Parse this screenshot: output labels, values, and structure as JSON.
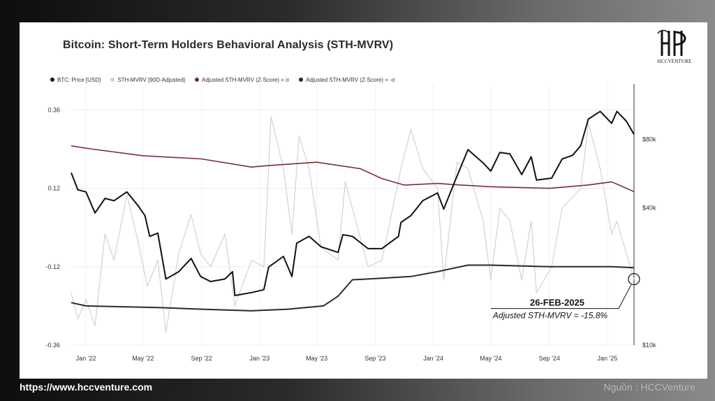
{
  "footer": {
    "url": "https://www.hccventure.com",
    "source": "Nguồn : HCCVenture"
  },
  "logo": {
    "text": "HCCVENTURE",
    "name": "hccventure-logo"
  },
  "colors": {
    "price": "#111111",
    "sth_mvrv": "#d2d2d2",
    "plus_sigma": "#7a2e33",
    "minus_sigma": "#2a2a2a"
  },
  "chart_data": {
    "type": "line",
    "title": "Bitcoin: Short-Term Holders Behavioral Analysis (STH-MVRV)",
    "x_ticks": [
      "Jan '22",
      "May '22",
      "Sep '22",
      "Jan '23",
      "May '23",
      "Sep '23",
      "Jan '24",
      "May '24",
      "Sep '24",
      "Jan '25"
    ],
    "x_tick_dates": [
      "2022-01-01",
      "2022-05-01",
      "2022-09-01",
      "2023-01-01",
      "2023-05-01",
      "2023-09-01",
      "2024-01-01",
      "2024-05-01",
      "2024-09-01",
      "2025-01-01"
    ],
    "x_range": [
      "2021-12-01",
      "2025-02-26"
    ],
    "y_left": {
      "ticks": [
        -0.36,
        -0.12,
        0.12,
        0.36
      ],
      "tick_labels": [
        "-0.36",
        "-0.12",
        "0.12",
        "0.36"
      ],
      "range": [
        -0.36,
        0.44
      ]
    },
    "y_right": {
      "scale": "log",
      "ticks": [
        10000,
        40000,
        80000
      ],
      "tick_labels": [
        "$10k",
        "$40k",
        "$80k"
      ],
      "range": [
        10000,
        140000
      ]
    },
    "grid": true,
    "legend_placement": "top-left",
    "series": [
      {
        "name": "BTC: Price [USD]",
        "axis": "right",
        "points": [
          [
            "2021-12-01",
            57000
          ],
          [
            "2021-12-15",
            48000
          ],
          [
            "2022-01-01",
            47000
          ],
          [
            "2022-01-20",
            38000
          ],
          [
            "2022-02-10",
            44000
          ],
          [
            "2022-03-01",
            43000
          ],
          [
            "2022-03-28",
            47000
          ],
          [
            "2022-04-20",
            41000
          ],
          [
            "2022-05-05",
            37000
          ],
          [
            "2022-05-15",
            30000
          ],
          [
            "2022-06-01",
            31000
          ],
          [
            "2022-06-18",
            19500
          ],
          [
            "2022-07-15",
            21000
          ],
          [
            "2022-08-10",
            24000
          ],
          [
            "2022-08-30",
            20000
          ],
          [
            "2022-09-20",
            19000
          ],
          [
            "2022-10-20",
            19500
          ],
          [
            "2022-11-05",
            21000
          ],
          [
            "2022-11-10",
            16500
          ],
          [
            "2022-12-15",
            17000
          ],
          [
            "2023-01-10",
            17500
          ],
          [
            "2023-01-20",
            22000
          ],
          [
            "2023-02-20",
            24500
          ],
          [
            "2023-03-10",
            20000
          ],
          [
            "2023-03-20",
            28000
          ],
          [
            "2023-04-15",
            30000
          ],
          [
            "2023-05-10",
            27000
          ],
          [
            "2023-06-15",
            25500
          ],
          [
            "2023-06-25",
            30500
          ],
          [
            "2023-07-15",
            30000
          ],
          [
            "2023-08-17",
            26500
          ],
          [
            "2023-09-15",
            26500
          ],
          [
            "2023-10-20",
            30000
          ],
          [
            "2023-10-25",
            34500
          ],
          [
            "2023-11-15",
            37000
          ],
          [
            "2023-12-10",
            43000
          ],
          [
            "2024-01-10",
            46500
          ],
          [
            "2024-01-23",
            39500
          ],
          [
            "2024-02-15",
            52000
          ],
          [
            "2024-03-14",
            72000
          ],
          [
            "2024-04-15",
            63000
          ],
          [
            "2024-05-01",
            58000
          ],
          [
            "2024-05-20",
            70000
          ],
          [
            "2024-06-10",
            69000
          ],
          [
            "2024-07-05",
            56000
          ],
          [
            "2024-07-25",
            67000
          ],
          [
            "2024-08-05",
            53000
          ],
          [
            "2024-09-06",
            54000
          ],
          [
            "2024-09-28",
            65500
          ],
          [
            "2024-10-20",
            68000
          ],
          [
            "2024-11-06",
            75000
          ],
          [
            "2024-11-22",
            98000
          ],
          [
            "2024-12-17",
            106000
          ],
          [
            "2025-01-10",
            94000
          ],
          [
            "2025-01-21",
            106000
          ],
          [
            "2025-02-10",
            96000
          ],
          [
            "2025-02-26",
            84000
          ]
        ]
      },
      {
        "name": "STH-MVRV [90D-Adjusted]",
        "axis": "left",
        "points": [
          [
            "2021-12-01",
            -0.2
          ],
          [
            "2021-12-15",
            -0.28
          ],
          [
            "2022-01-01",
            -0.22
          ],
          [
            "2022-01-20",
            -0.3
          ],
          [
            "2022-02-10",
            -0.02
          ],
          [
            "2022-03-01",
            -0.1
          ],
          [
            "2022-03-28",
            0.1
          ],
          [
            "2022-04-20",
            -0.04
          ],
          [
            "2022-05-10",
            -0.18
          ],
          [
            "2022-06-01",
            -0.1
          ],
          [
            "2022-06-18",
            -0.32
          ],
          [
            "2022-07-15",
            -0.08
          ],
          [
            "2022-08-10",
            0.04
          ],
          [
            "2022-08-30",
            -0.08
          ],
          [
            "2022-09-20",
            -0.12
          ],
          [
            "2022-10-20",
            -0.02
          ],
          [
            "2022-11-10",
            -0.24
          ],
          [
            "2022-12-15",
            -0.1
          ],
          [
            "2023-01-10",
            -0.12
          ],
          [
            "2023-01-25",
            0.34
          ],
          [
            "2023-02-20",
            0.18
          ],
          [
            "2023-03-10",
            -0.02
          ],
          [
            "2023-03-25",
            0.28
          ],
          [
            "2023-04-15",
            0.18
          ],
          [
            "2023-05-10",
            -0.06
          ],
          [
            "2023-06-15",
            -0.1
          ],
          [
            "2023-06-30",
            0.14
          ],
          [
            "2023-08-17",
            -0.12
          ],
          [
            "2023-09-15",
            -0.1
          ],
          [
            "2023-10-25",
            0.18
          ],
          [
            "2023-11-15",
            0.3
          ],
          [
            "2023-12-10",
            0.18
          ],
          [
            "2024-01-10",
            0.12
          ],
          [
            "2024-01-23",
            -0.16
          ],
          [
            "2024-02-20",
            0.2
          ],
          [
            "2024-03-14",
            0.18
          ],
          [
            "2024-04-15",
            0.02
          ],
          [
            "2024-05-01",
            -0.16
          ],
          [
            "2024-05-20",
            0.06
          ],
          [
            "2024-06-10",
            0.02
          ],
          [
            "2024-07-05",
            -0.16
          ],
          [
            "2024-07-25",
            0.02
          ],
          [
            "2024-08-05",
            -0.2
          ],
          [
            "2024-09-06",
            -0.12
          ],
          [
            "2024-09-28",
            0.06
          ],
          [
            "2024-11-06",
            0.12
          ],
          [
            "2024-11-22",
            0.32
          ],
          [
            "2024-12-17",
            0.18
          ],
          [
            "2025-01-10",
            -0.02
          ],
          [
            "2025-01-21",
            0.02
          ],
          [
            "2025-02-10",
            -0.08
          ],
          [
            "2025-02-26",
            -0.158
          ]
        ]
      },
      {
        "name": "Adjusted STH-MVRV (Z-Score) = σ",
        "axis": "left",
        "points": [
          [
            "2021-12-01",
            0.25
          ],
          [
            "2022-01-15",
            0.24
          ],
          [
            "2022-05-01",
            0.22
          ],
          [
            "2022-09-01",
            0.21
          ],
          [
            "2022-12-15",
            0.185
          ],
          [
            "2023-01-20",
            0.19
          ],
          [
            "2023-05-01",
            0.2
          ],
          [
            "2023-08-01",
            0.18
          ],
          [
            "2023-09-15",
            0.15
          ],
          [
            "2023-11-01",
            0.13
          ],
          [
            "2024-01-10",
            0.135
          ],
          [
            "2024-03-01",
            0.13
          ],
          [
            "2024-05-01",
            0.125
          ],
          [
            "2024-09-01",
            0.12
          ],
          [
            "2024-11-20",
            0.13
          ],
          [
            "2025-01-10",
            0.14
          ],
          [
            "2025-02-26",
            0.11
          ]
        ]
      },
      {
        "name": "Adjusted STH-MVRV (Z-Score) = -σ",
        "axis": "left",
        "points": [
          [
            "2021-12-01",
            -0.23
          ],
          [
            "2022-01-01",
            -0.24
          ],
          [
            "2022-06-01",
            -0.245
          ],
          [
            "2022-09-01",
            -0.25
          ],
          [
            "2022-12-15",
            -0.255
          ],
          [
            "2023-03-01",
            -0.25
          ],
          [
            "2023-05-15",
            -0.24
          ],
          [
            "2023-06-15",
            -0.21
          ],
          [
            "2023-07-15",
            -0.16
          ],
          [
            "2023-09-15",
            -0.155
          ],
          [
            "2023-11-15",
            -0.15
          ],
          [
            "2024-01-10",
            -0.135
          ],
          [
            "2024-03-14",
            -0.115
          ],
          [
            "2024-05-01",
            -0.115
          ],
          [
            "2024-09-01",
            -0.12
          ],
          [
            "2025-01-10",
            -0.12
          ],
          [
            "2025-02-26",
            -0.123
          ]
        ]
      }
    ],
    "annotation": {
      "date_label": "26-FEB-2025",
      "value_label": "Adjusted STH-MVRV = -15.8%",
      "date": "2025-02-26",
      "value": -0.158
    }
  }
}
